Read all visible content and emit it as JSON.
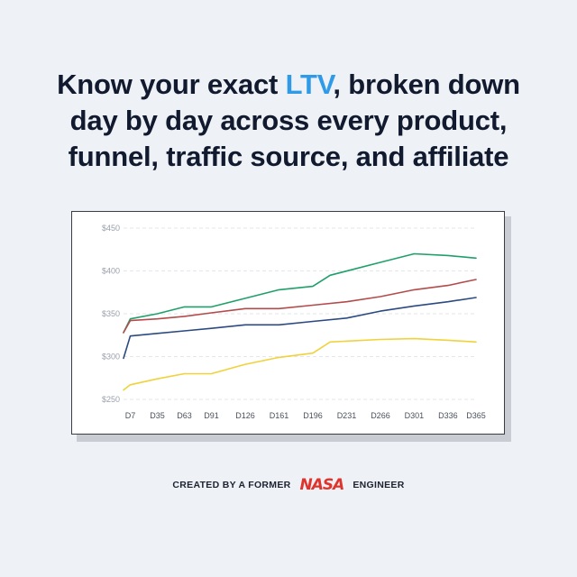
{
  "headline": {
    "line1_pre": "Know your exact ",
    "line1_accent": "LTV",
    "line1_post": ", broken down",
    "line2": "day by day across every product,",
    "line3": "funnel, traffic source, and affiliate"
  },
  "colors": {
    "accent": "#2f9be8",
    "green": "#1fa06a",
    "red": "#b44b4b",
    "blue": "#2b4a82",
    "yellow": "#f0d23a",
    "logo": "#e0332b"
  },
  "chart_data": {
    "type": "line",
    "title": "",
    "xlabel": "",
    "ylabel": "",
    "ylim": [
      250,
      450
    ],
    "y_ticks": [
      "$250",
      "$300",
      "$350",
      "$400",
      "$450"
    ],
    "y_tick_values": [
      250,
      300,
      350,
      400,
      450
    ],
    "grid": true,
    "categories": [
      "D7",
      "D35",
      "D63",
      "D91",
      "D126",
      "D161",
      "D196",
      "D231",
      "D266",
      "D301",
      "D336",
      "D365"
    ],
    "x_range": [
      0,
      365
    ],
    "x_tick_days": [
      7,
      35,
      63,
      91,
      126,
      161,
      196,
      231,
      266,
      301,
      336,
      365
    ],
    "series": [
      {
        "color": "#1fa06a",
        "x": [
          0,
          7,
          35,
          63,
          91,
          126,
          161,
          196,
          214,
          266,
          301,
          336,
          365
        ],
        "values": [
          328,
          344,
          350,
          358,
          358,
          368,
          378,
          382,
          395,
          410,
          420,
          418,
          415
        ]
      },
      {
        "color": "#b44b4b",
        "x": [
          0,
          7,
          35,
          63,
          91,
          126,
          161,
          196,
          231,
          266,
          301,
          336,
          365
        ],
        "values": [
          328,
          342,
          344,
          347,
          351,
          356,
          356,
          360,
          364,
          370,
          378,
          383,
          390
        ]
      },
      {
        "color": "#2b4a82",
        "x": [
          0,
          7,
          35,
          63,
          91,
          126,
          161,
          196,
          231,
          266,
          301,
          336,
          365
        ],
        "values": [
          298,
          324,
          327,
          330,
          333,
          337,
          337,
          341,
          345,
          353,
          359,
          364,
          369
        ]
      },
      {
        "color": "#f0d23a",
        "x": [
          0,
          7,
          35,
          63,
          91,
          126,
          161,
          196,
          214,
          266,
          301,
          336,
          365
        ],
        "values": [
          261,
          267,
          274,
          280,
          280,
          291,
          299,
          304,
          317,
          320,
          321,
          319,
          317
        ]
      }
    ]
  },
  "footer": {
    "pre": "CREATED BY A FORMER",
    "logo": "NASA",
    "post": "ENGINEER"
  }
}
